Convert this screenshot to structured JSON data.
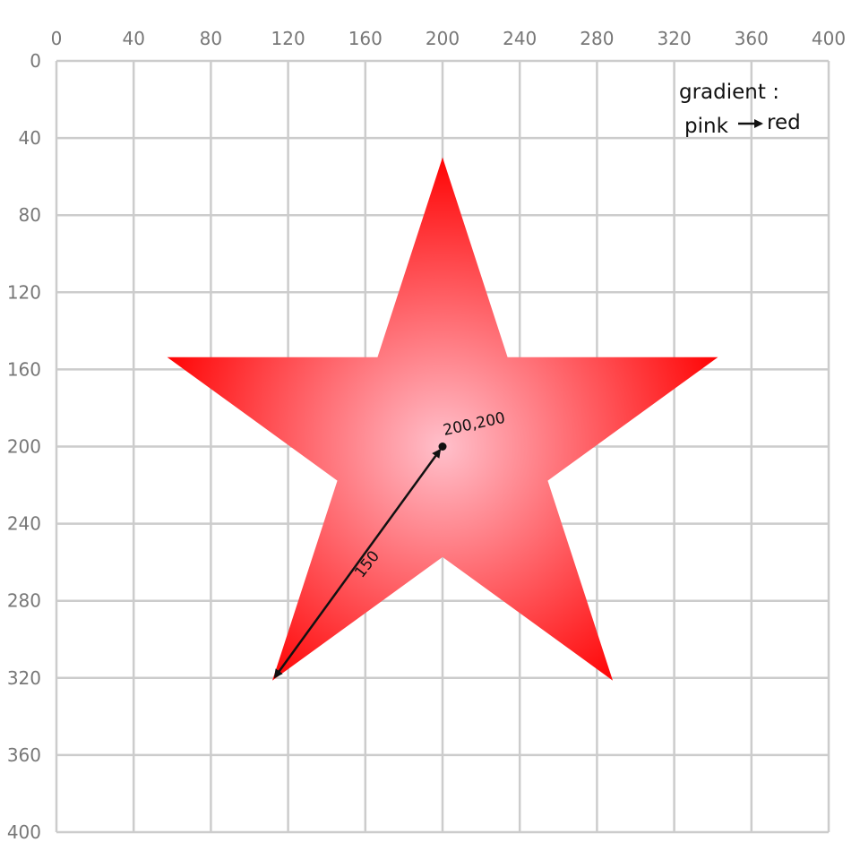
{
  "canvas": {
    "x_ticks": [
      "0",
      "40",
      "80",
      "120",
      "160",
      "200",
      "240",
      "280",
      "320",
      "360",
      "400"
    ],
    "y_ticks": [
      "0",
      "40",
      "80",
      "120",
      "160",
      "200",
      "240",
      "280",
      "320",
      "360",
      "400"
    ],
    "x_range": [
      0,
      400
    ],
    "y_range": [
      0,
      400
    ],
    "grid": true
  },
  "star": {
    "center": [
      200,
      200
    ],
    "outer_radius": 150,
    "points": 5,
    "gradient": {
      "inner_color": "#ffc0cb",
      "outer_color": "#ff0000"
    }
  },
  "annotations": {
    "note_line1": "gradient :",
    "note_line2": "pink",
    "note_line2b": "red",
    "center_label": "200,200",
    "radius_label": "150"
  }
}
